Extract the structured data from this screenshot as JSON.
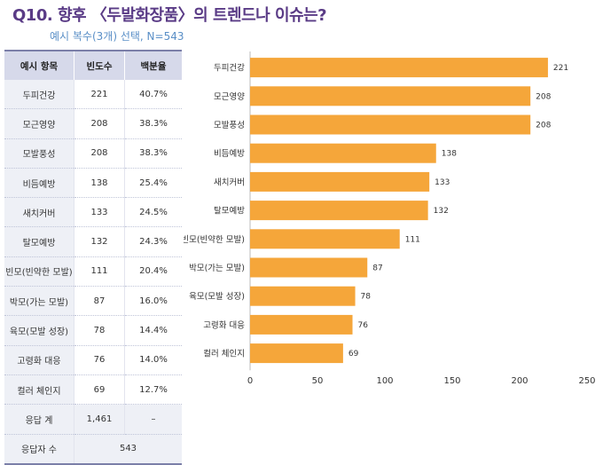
{
  "title": "Q10. 향후 〈두발화장품〉의 트렌드나 이슈는?",
  "subtitle": "예시 복수(3개) 선택, N=543",
  "table": {
    "headers": [
      "예시 항목",
      "빈도수",
      "백분율"
    ],
    "rows": [
      {
        "label": "두피건강",
        "count": "221",
        "pct": "40.7%"
      },
      {
        "label": "모근영양",
        "count": "208",
        "pct": "38.3%"
      },
      {
        "label": "모발풍성",
        "count": "208",
        "pct": "38.3%"
      },
      {
        "label": "비듬예방",
        "count": "138",
        "pct": "25.4%"
      },
      {
        "label": "새치커버",
        "count": "133",
        "pct": "24.5%"
      },
      {
        "label": "탈모예방",
        "count": "132",
        "pct": "24.3%"
      },
      {
        "label": "빈모(빈약한 모발)",
        "count": "111",
        "pct": "20.4%"
      },
      {
        "label": "박모(가는 모발)",
        "count": "87",
        "pct": "16.0%"
      },
      {
        "label": "육모(모발 성장)",
        "count": "78",
        "pct": "14.4%"
      },
      {
        "label": "고령화 대응",
        "count": "76",
        "pct": "14.0%"
      },
      {
        "label": "컬러 체인지",
        "count": "69",
        "pct": "12.7%"
      }
    ],
    "total": {
      "label": "응답 계",
      "count": "1,461",
      "pct": "–"
    },
    "respondents": {
      "label": "응답자 수",
      "value": "543"
    }
  },
  "chart_data": {
    "type": "bar",
    "orientation": "horizontal",
    "categories": [
      "두피건강",
      "모근영양",
      "모발풍성",
      "비듬예방",
      "새치커버",
      "탈모예방",
      "빈모(빈약한 모발)",
      "박모(가는 모발)",
      "육모(모발 성장)",
      "고령화 대응",
      "컬러 체인지"
    ],
    "values": [
      221,
      208,
      208,
      138,
      133,
      132,
      111,
      87,
      78,
      76,
      69
    ],
    "xlim": [
      0,
      250
    ],
    "xticks": [
      0,
      50,
      100,
      150,
      200,
      250
    ],
    "bar_color": "#f5a63a",
    "grid": false
  }
}
